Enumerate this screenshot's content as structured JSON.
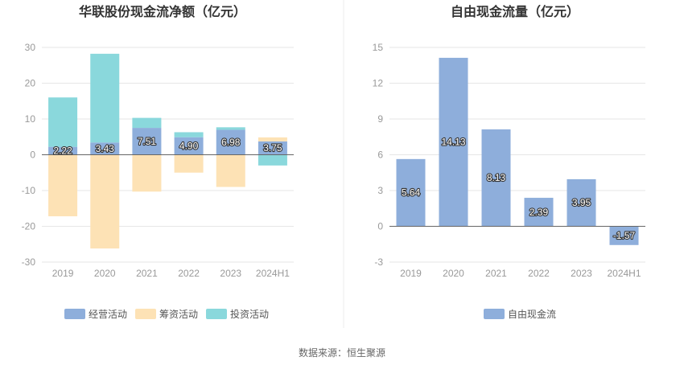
{
  "chart_data": [
    {
      "type": "bar",
      "stacked": true,
      "title": "华联股份现金流净额（亿元）",
      "categories": [
        "2019",
        "2020",
        "2021",
        "2022",
        "2023",
        "2024H1"
      ],
      "ylim": [
        -30,
        30
      ],
      "yticks": [
        30,
        20,
        10,
        0,
        -10,
        -20,
        -30
      ],
      "grid": true,
      "legend_position": "bottom",
      "series": [
        {
          "name": "经营活动",
          "color": "#8eaedb",
          "values": [
            2.22,
            3.43,
            7.51,
            4.9,
            6.98,
            3.75
          ],
          "labels": [
            "2.22",
            "3.43",
            "7.51",
            "4.90",
            "6.98",
            "3.75"
          ]
        },
        {
          "name": "筹资活动",
          "color": "#fde2b5",
          "values": [
            -17.2,
            -26.2,
            -10.3,
            -5.0,
            -9.0,
            1.1
          ]
        },
        {
          "name": "投资活动",
          "color": "#8ad8dc",
          "values": [
            13.8,
            24.8,
            2.8,
            1.4,
            0.7,
            -3.0
          ]
        }
      ]
    },
    {
      "type": "bar",
      "title": "自由现金流量（亿元）",
      "categories": [
        "2019",
        "2020",
        "2021",
        "2022",
        "2023",
        "2024H1"
      ],
      "ylim": [
        -3,
        15
      ],
      "yticks": [
        15,
        12,
        9,
        6,
        3,
        0,
        -3
      ],
      "grid": true,
      "legend_position": "bottom",
      "series": [
        {
          "name": "自由现金流",
          "color": "#8eaedb",
          "values": [
            5.64,
            14.13,
            8.13,
            2.39,
            3.95,
            -1.57
          ],
          "labels": [
            "5.64",
            "14.13",
            "8.13",
            "2.39",
            "3.95",
            "-1.57"
          ]
        }
      ]
    }
  ],
  "footer": {
    "source": "数据来源：恒生聚源"
  }
}
